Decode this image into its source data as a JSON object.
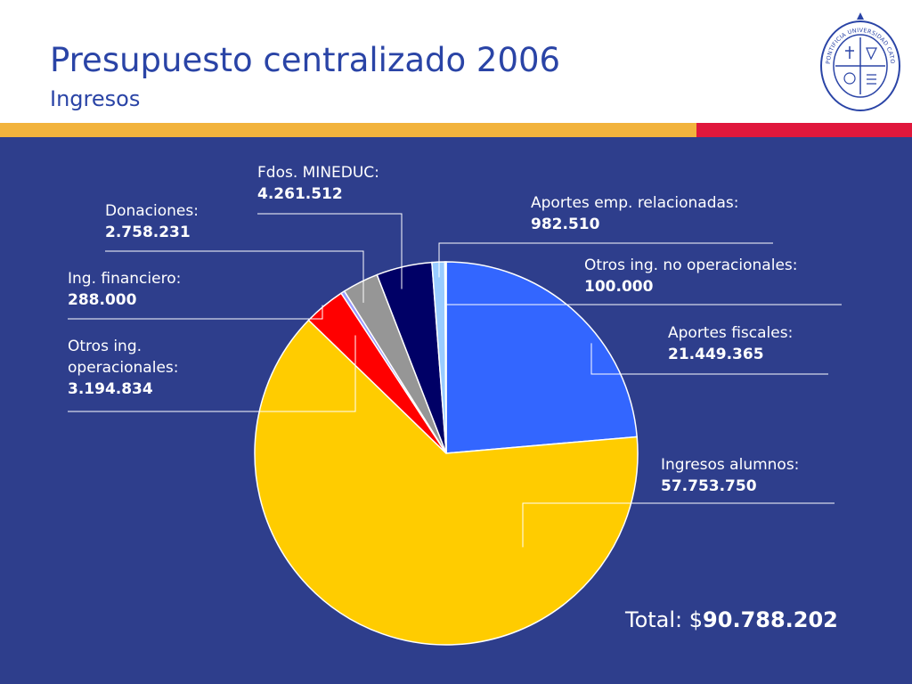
{
  "slide": {
    "title": "Presupuesto centralizado 2006",
    "subtitle": "Ingresos"
  },
  "seal": {
    "text": "PONTIFICIA UNIVERSIDAD CATOLICA DE CHILE"
  },
  "colors": {
    "title": "#2A44A6",
    "stripe_gold": "#F2B33D",
    "stripe_red": "#E0173C",
    "panel": "#2E3E8C"
  },
  "chart_data": {
    "type": "pie",
    "title": "",
    "slices": [
      {
        "name": "Aportes fiscales:",
        "label": "21.449.365",
        "value": 21449365,
        "color": "#3366FF"
      },
      {
        "name": "Ingresos alumnos:",
        "label": "57.753.750",
        "value": 57753750,
        "color": "#FFCC00"
      },
      {
        "name": "Otros ing. operacionales:",
        "label": "3.194.834",
        "value": 3194834,
        "color": "#FF0000"
      },
      {
        "name": "Ing. financiero:",
        "label": "288.000",
        "value": 288000,
        "color": "#9999FF"
      },
      {
        "name": "Donaciones:",
        "label": "2.758.231",
        "value": 2758231,
        "color": "#969696"
      },
      {
        "name": "Fdos. MINEDUC:",
        "label": "4.261.512",
        "value": 4261512,
        "color": "#000066"
      },
      {
        "name": "Aportes emp. relacionadas:",
        "label": "982.510",
        "value": 982510,
        "color": "#99CCFF"
      },
      {
        "name": "Otros ing. no operacionales:",
        "label": "100.000",
        "value": 100000,
        "color": "#E6E6FF"
      }
    ],
    "total": {
      "prefix": "Total: $",
      "value": "90.788.202"
    }
  }
}
